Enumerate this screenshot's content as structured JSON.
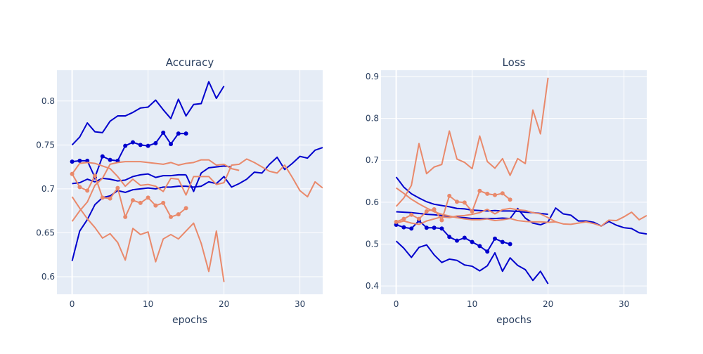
{
  "colors": {
    "blue": "#0000cd",
    "orange": "#e9896b",
    "plot_bg": "#e5ecf6",
    "text": "#2a3f5f"
  },
  "chart_data": [
    {
      "type": "line",
      "title": "Accuracy",
      "xlabel": "epochs",
      "ylabel": "",
      "xlim": [
        -2,
        33
      ],
      "ylim": [
        0.58,
        0.835
      ],
      "xticks": [
        0,
        10,
        20,
        30
      ],
      "yticks": [
        0.6,
        0.65,
        0.7,
        0.75,
        0.8
      ],
      "ytick_labels": [
        "0.6",
        "0.65",
        "0.7",
        "0.75",
        "0.8"
      ],
      "grid": true,
      "series": [
        {
          "color": "blue",
          "markers": false,
          "x0": 0,
          "values": [
            0.75,
            0.759,
            0.775,
            0.765,
            0.764,
            0.777,
            0.783,
            0.783,
            0.787,
            0.792,
            0.793,
            0.801,
            0.79,
            0.78,
            0.802,
            0.783,
            0.796,
            0.797,
            0.822,
            0.803,
            0.817
          ]
        },
        {
          "color": "blue",
          "markers": true,
          "x0": 0,
          "values": [
            0.731,
            0.732,
            0.732,
            0.713,
            0.737,
            0.733,
            0.732,
            0.749,
            0.753,
            0.75,
            0.749,
            0.752,
            0.764,
            0.751,
            0.763,
            0.763
          ]
        },
        {
          "color": "blue",
          "markers": false,
          "x0": 0,
          "values": [
            0.706,
            0.707,
            0.711,
            0.708,
            0.712,
            0.711,
            0.709,
            0.71,
            0.714,
            0.716,
            0.717,
            0.713,
            0.715,
            0.715,
            0.716,
            0.716
          ]
        },
        {
          "color": "blue",
          "markers": false,
          "x0": 0,
          "values": [
            0.618,
            0.652,
            0.665,
            0.682,
            0.69,
            0.692,
            0.698,
            0.696,
            0.699,
            0.7,
            0.701,
            0.7,
            0.702,
            0.702,
            0.703,
            0.703,
            0.702,
            0.703,
            0.708,
            0.706,
            0.714,
            0.702,
            0.706,
            0.711,
            0.719,
            0.718,
            0.728,
            0.736,
            0.722,
            0.729,
            0.737,
            0.735,
            0.744,
            0.747
          ]
        },
        {
          "color": "blue",
          "markers": false,
          "x0": 15,
          "values": [
            0.716,
            0.697,
            0.718,
            0.724,
            0.725,
            0.726,
            0.725
          ]
        },
        {
          "color": "orange",
          "markers": false,
          "x0": 0,
          "values": [
            0.691,
            0.678,
            0.666,
            0.656,
            0.644,
            0.649,
            0.639,
            0.619,
            0.655,
            0.648,
            0.651,
            0.617,
            0.643,
            0.648,
            0.643,
            0.652,
            0.661,
            0.638,
            0.606,
            0.652,
            0.594
          ]
        },
        {
          "color": "orange",
          "markers": true,
          "x0": 0,
          "values": [
            0.717,
            0.702,
            0.698,
            0.715,
            0.69,
            0.689,
            0.701,
            0.668,
            0.687,
            0.684,
            0.69,
            0.681,
            0.684,
            0.668,
            0.671,
            0.678
          ]
        },
        {
          "color": "orange",
          "markers": false,
          "x0": 0,
          "values": [
            0.663,
            0.675,
            0.685,
            0.704,
            0.712,
            0.728,
            0.73,
            0.731,
            0.731,
            0.731,
            0.73,
            0.729,
            0.728,
            0.73,
            0.727,
            0.729,
            0.73,
            0.733,
            0.733,
            0.727,
            0.728,
            0.723,
            0.721
          ]
        },
        {
          "color": "orange",
          "markers": false,
          "x0": 0,
          "values": [
            0.717,
            0.729,
            0.73,
            0.729,
            0.726,
            0.723,
            0.714,
            0.703,
            0.711,
            0.704,
            0.705,
            0.703,
            0.697,
            0.712,
            0.711,
            0.693,
            0.714,
            0.714,
            0.714,
            0.705,
            0.707,
            0.727,
            0.728,
            0.734,
            0.73,
            0.725,
            0.72,
            0.718,
            0.727,
            0.713,
            0.698,
            0.691,
            0.708,
            0.701
          ]
        }
      ]
    },
    {
      "type": "line",
      "title": "Loss",
      "xlabel": "epochs",
      "ylabel": "",
      "xlim": [
        -2,
        33
      ],
      "ylim": [
        0.38,
        0.915
      ],
      "xticks": [
        0,
        10,
        20,
        30
      ],
      "yticks": [
        0.4,
        0.5,
        0.6,
        0.7,
        0.8,
        0.9
      ],
      "ytick_labels": [
        "0.4",
        "0.5",
        "0.6",
        "0.7",
        "0.8",
        "0.9"
      ],
      "grid": true,
      "series": [
        {
          "color": "blue",
          "markers": false,
          "x0": 0,
          "values": [
            0.507,
            0.49,
            0.468,
            0.492,
            0.498,
            0.474,
            0.456,
            0.464,
            0.461,
            0.45,
            0.447,
            0.436,
            0.448,
            0.479,
            0.435,
            0.467,
            0.449,
            0.439,
            0.413,
            0.435,
            0.405
          ]
        },
        {
          "color": "blue",
          "markers": true,
          "x0": 0,
          "values": [
            0.546,
            0.54,
            0.537,
            0.556,
            0.539,
            0.539,
            0.537,
            0.517,
            0.508,
            0.515,
            0.505,
            0.495,
            0.482,
            0.513,
            0.505,
            0.5
          ]
        },
        {
          "color": "blue",
          "markers": false,
          "x0": 0,
          "values": [
            0.577,
            0.576,
            0.575,
            0.573,
            0.571,
            0.57,
            0.568,
            0.566,
            0.564,
            0.563,
            0.561,
            0.561,
            0.561,
            0.561,
            0.562,
            0.561,
            0.585,
            0.562,
            0.55,
            0.546,
            0.553,
            0.586,
            0.572,
            0.569,
            0.555,
            0.555,
            0.552,
            0.543,
            0.554,
            0.545,
            0.539,
            0.537,
            0.527,
            0.524
          ]
        },
        {
          "color": "blue",
          "markers": false,
          "x0": 0,
          "values": [
            0.66,
            0.636,
            0.62,
            0.61,
            0.601,
            0.595,
            0.592,
            0.589,
            0.585,
            0.584,
            0.581,
            0.58,
            0.579,
            0.58,
            0.579,
            0.579,
            0.578,
            0.576,
            0.575,
            0.573,
            0.571
          ]
        },
        {
          "color": "orange",
          "markers": false,
          "x0": 0,
          "values": [
            0.59,
            0.61,
            0.64,
            0.74,
            0.668,
            0.684,
            0.69,
            0.77,
            0.703,
            0.695,
            0.68,
            0.758,
            0.697,
            0.681,
            0.704,
            0.664,
            0.704,
            0.692,
            0.82,
            0.763,
            0.897
          ]
        },
        {
          "color": "orange",
          "markers": true,
          "x0": 0,
          "values": [
            0.553,
            0.56,
            0.57,
            0.56,
            0.578,
            0.583,
            0.557,
            0.615,
            0.601,
            0.599,
            0.578,
            0.627,
            0.62,
            0.617,
            0.621,
            0.606
          ]
        },
        {
          "color": "orange",
          "markers": false,
          "x0": 0,
          "values": [
            0.634,
            0.621,
            0.607,
            0.596,
            0.586,
            0.577,
            0.571,
            0.567,
            0.563,
            0.56,
            0.558,
            0.558,
            0.56,
            0.556,
            0.558,
            0.561,
            0.556,
            0.554,
            0.553,
            0.553,
            0.552,
            0.553
          ]
        },
        {
          "color": "orange",
          "markers": false,
          "x0": 0,
          "values": [
            0.55,
            0.555,
            0.55,
            0.547,
            0.555,
            0.56,
            0.565,
            0.563,
            0.567,
            0.568,
            0.571,
            0.575,
            0.583,
            0.572,
            0.582,
            0.585,
            0.582,
            0.58,
            0.575,
            0.572,
            0.563,
            0.553,
            0.548,
            0.547,
            0.55,
            0.553,
            0.549,
            0.543,
            0.557,
            0.556,
            0.565,
            0.576,
            0.558,
            0.568
          ]
        }
      ]
    }
  ]
}
